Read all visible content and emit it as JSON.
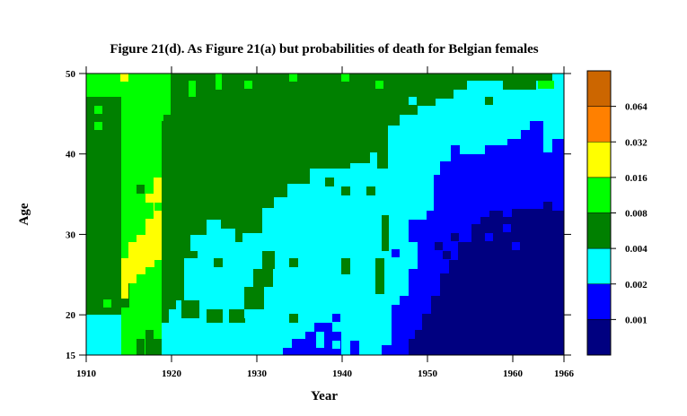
{
  "chart_data": {
    "type": "heatmap",
    "title": "Figure 21(d). As Figure 21(a) but probabilities of death for Belgian females",
    "xlabel": "Year",
    "ylabel": "Age",
    "xlim": [
      1910,
      1966
    ],
    "ylim": [
      15,
      50
    ],
    "x_ticks": [
      "1910",
      "1920",
      "1930",
      "1940",
      "1950",
      "1960",
      "1966"
    ],
    "y_ticks": [
      "15",
      "20",
      "30",
      "40",
      "50"
    ],
    "legend": {
      "placement": "right",
      "levels": [
        {
          "color": "#000080",
          "label": "0.001"
        },
        {
          "color": "#0000ff",
          "label": "0.002"
        },
        {
          "color": "#00ffff",
          "label": "0.004"
        },
        {
          "color": "#008000",
          "label": "0.008"
        },
        {
          "color": "#00ff00",
          "label": "0.016"
        },
        {
          "color": "#ffff00",
          "label": "0.032"
        },
        {
          "color": "#ff8000",
          "label": "0.064"
        },
        {
          "color": "#cc6600",
          "label": ""
        }
      ]
    },
    "regions": [
      {
        "level": 3,
        "description_years": "1910-1914",
        "ages": "20-47"
      },
      {
        "level": 2,
        "description_years": "1910-1914",
        "ages": "15-20"
      },
      {
        "level": 4,
        "description_years": "1910-1919",
        "ages": "47-50"
      },
      {
        "level": 4,
        "description_years": "1914-1919",
        "ages": "15-47"
      },
      {
        "level": 5,
        "description_years": "1915-1919",
        "ages": "24-37"
      },
      {
        "level": 3,
        "description_years": "1919-1966",
        "ages": "upper band"
      },
      {
        "level": 2,
        "description_years": "1919-1966",
        "ages": "middle band"
      },
      {
        "level": 1,
        "description_years": "1933-1966",
        "ages": "lower band"
      },
      {
        "level": 0,
        "description_years": "1948-1966",
        "ages": "15-33"
      }
    ]
  }
}
